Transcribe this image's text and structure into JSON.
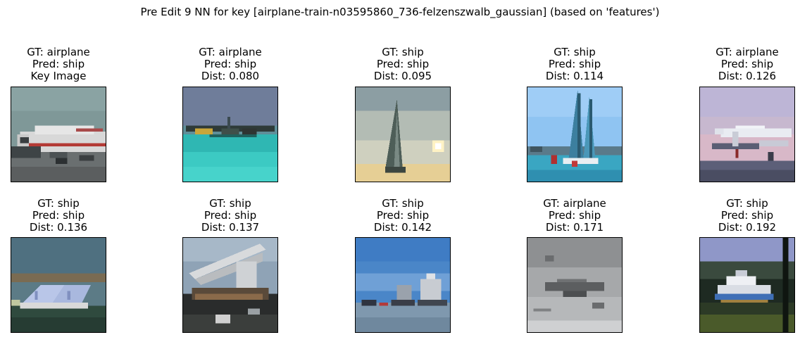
{
  "title": "Pre Edit 9 NN for key [airplane-train-n03595860_736-felzenszwalb_gaussian] (based on 'features')",
  "chart_data": {
    "type": "image_grid",
    "rows": 2,
    "cols": 5,
    "title": "Pre Edit 9 NN for key [airplane-train-n03595860_736-felzenszwalb_gaussian] (based on 'features')",
    "panels": [
      {
        "gt": "GT: airplane",
        "pred": "Pred: ship",
        "extra": "Key Image",
        "content": "airliner on runway"
      },
      {
        "gt": "GT: airplane",
        "pred": "Pred: ship",
        "extra": "Dist: 0.080",
        "content": "seaplane on turquoise water"
      },
      {
        "gt": "GT: ship",
        "pred": "Pred: ship",
        "extra": "Dist: 0.095",
        "content": "sailboat at sunset"
      },
      {
        "gt": "GT: ship",
        "pred": "Pred: ship",
        "extra": "Dist: 0.114",
        "content": "racing yacht with tall sails"
      },
      {
        "gt": "GT: airplane",
        "pred": "Pred: ship",
        "extra": "Dist: 0.126",
        "content": "small jet at dusk"
      },
      {
        "gt": "GT: ship",
        "pred": "Pred: ship",
        "extra": "Dist: 0.136",
        "content": "building with solar-panel roof by water"
      },
      {
        "gt": "GT: ship",
        "pred": "Pred: ship",
        "extra": "Dist: 0.137",
        "content": "crane barge in harbor"
      },
      {
        "gt": "GT: ship",
        "pred": "Pred: ship",
        "extra": "Dist: 0.142",
        "content": "boats in harbor under blue sky"
      },
      {
        "gt": "GT: airplane",
        "pred": "Pred: ship",
        "extra": "Dist: 0.171",
        "content": "grey aircraft in grey sky"
      },
      {
        "gt": "GT: ship",
        "pred": "Pred: ship",
        "extra": "Dist: 0.192",
        "content": "white boat on dark water"
      }
    ]
  }
}
